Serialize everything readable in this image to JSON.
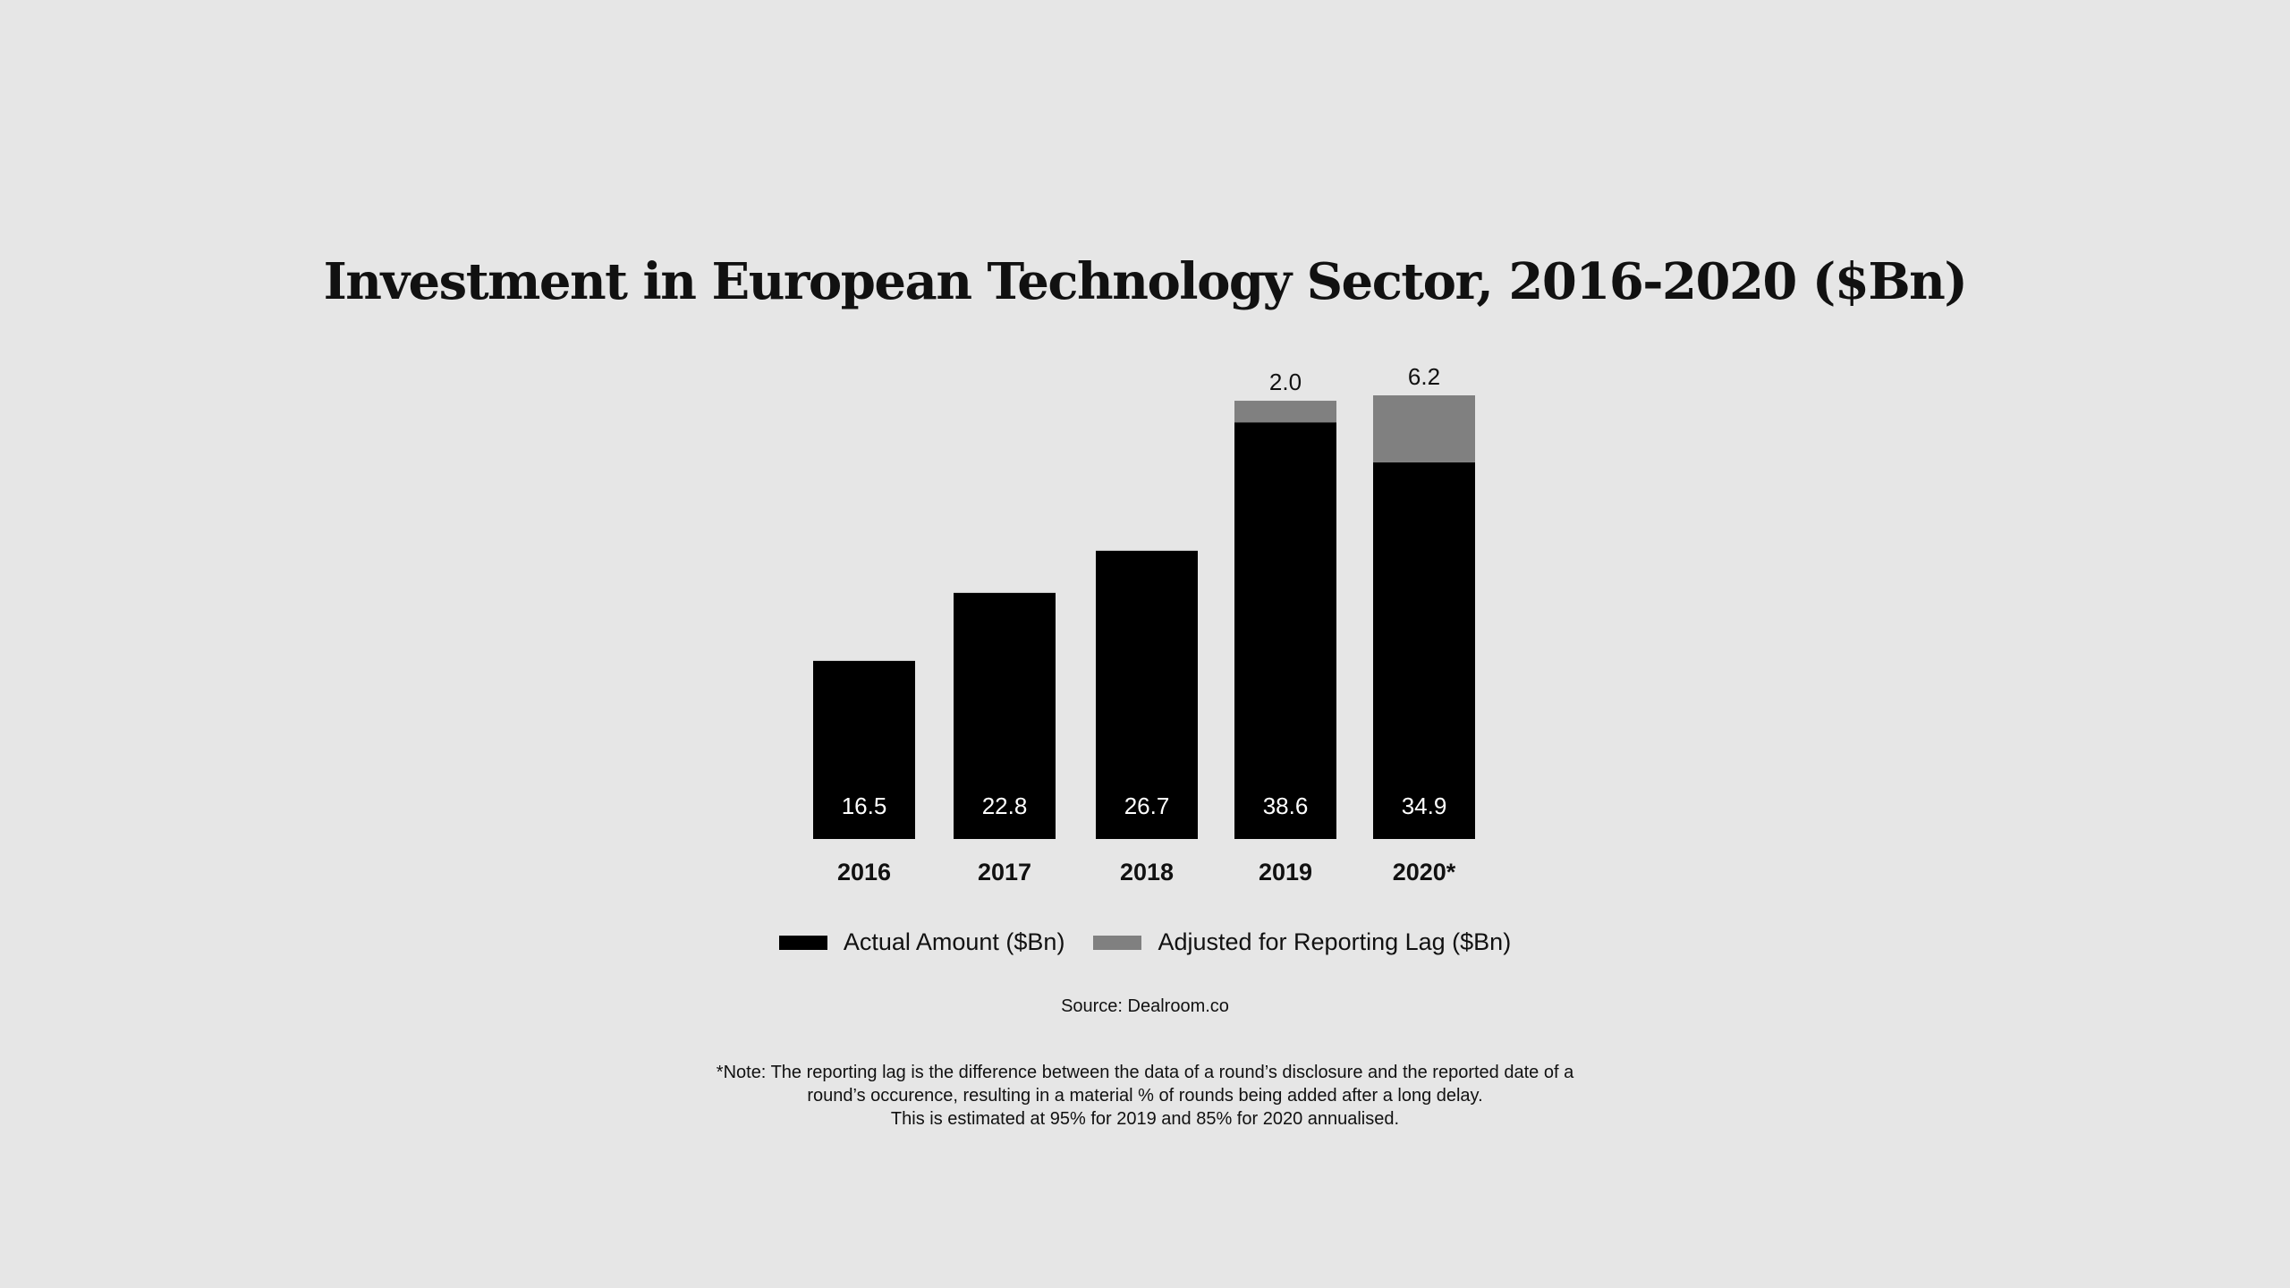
{
  "chart_data": {
    "type": "bar",
    "stacked": true,
    "title": "Investment in European Technology Sector, 2016-2020 ($Bn)",
    "categories": [
      "2016",
      "2017",
      "2018",
      "2019",
      "2020*"
    ],
    "series": [
      {
        "name": "Actual Amount ($Bn)",
        "color": "#000000",
        "values": [
          16.5,
          22.8,
          26.7,
          38.6,
          34.9
        ],
        "labels": [
          "16.5",
          "22.8",
          "26.7",
          "38.6",
          "34.9"
        ]
      },
      {
        "name": "Adjusted for Reporting Lag ($Bn)",
        "color": "#808080",
        "values": [
          0,
          0,
          0,
          2.0,
          6.2
        ],
        "labels": [
          "",
          "",
          "",
          "2.0",
          "6.2"
        ]
      }
    ],
    "ylim": [
      0,
      41.1
    ],
    "grid": false,
    "legend_position": "bottom"
  },
  "source": "Source: Dealroom.co",
  "note": {
    "lines": [
      "*Note: The reporting lag is the difference between the data of a round’s disclosure and the reported date of a",
      "round’s occurence, resulting in a material % of rounds being added after a long delay.",
      "This is estimated at 95% for 2019 and 85% for 2020 annualised."
    ]
  }
}
